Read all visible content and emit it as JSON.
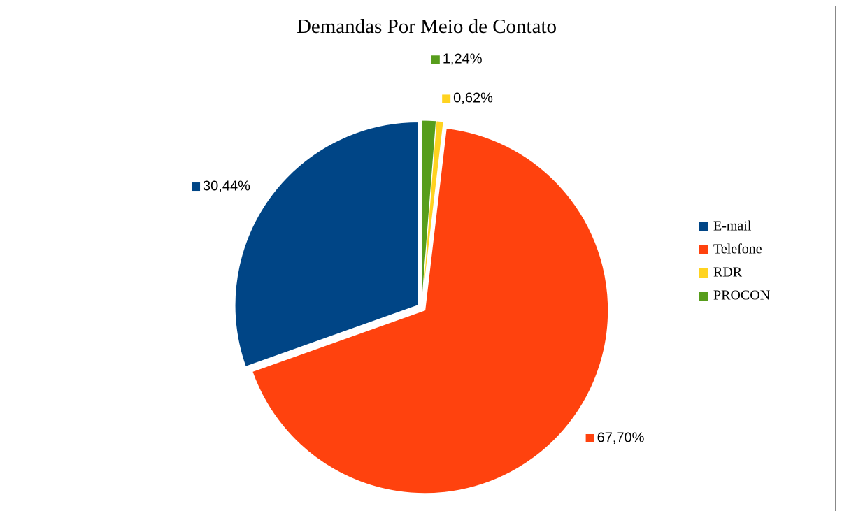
{
  "chart_data": {
    "type": "pie",
    "title": "Demandas Por Meio de Contato",
    "categories": [
      "E-mail",
      "Telefone",
      "RDR",
      "PROCON"
    ],
    "values": [
      30.44,
      67.7,
      0.62,
      1.24
    ],
    "value_labels": [
      "30,44%",
      "67,70%",
      "0,62%",
      "1,24%"
    ],
    "colors": [
      "#004586",
      "#ff420e",
      "#ffd320",
      "#579d1c"
    ],
    "legend": "right"
  }
}
